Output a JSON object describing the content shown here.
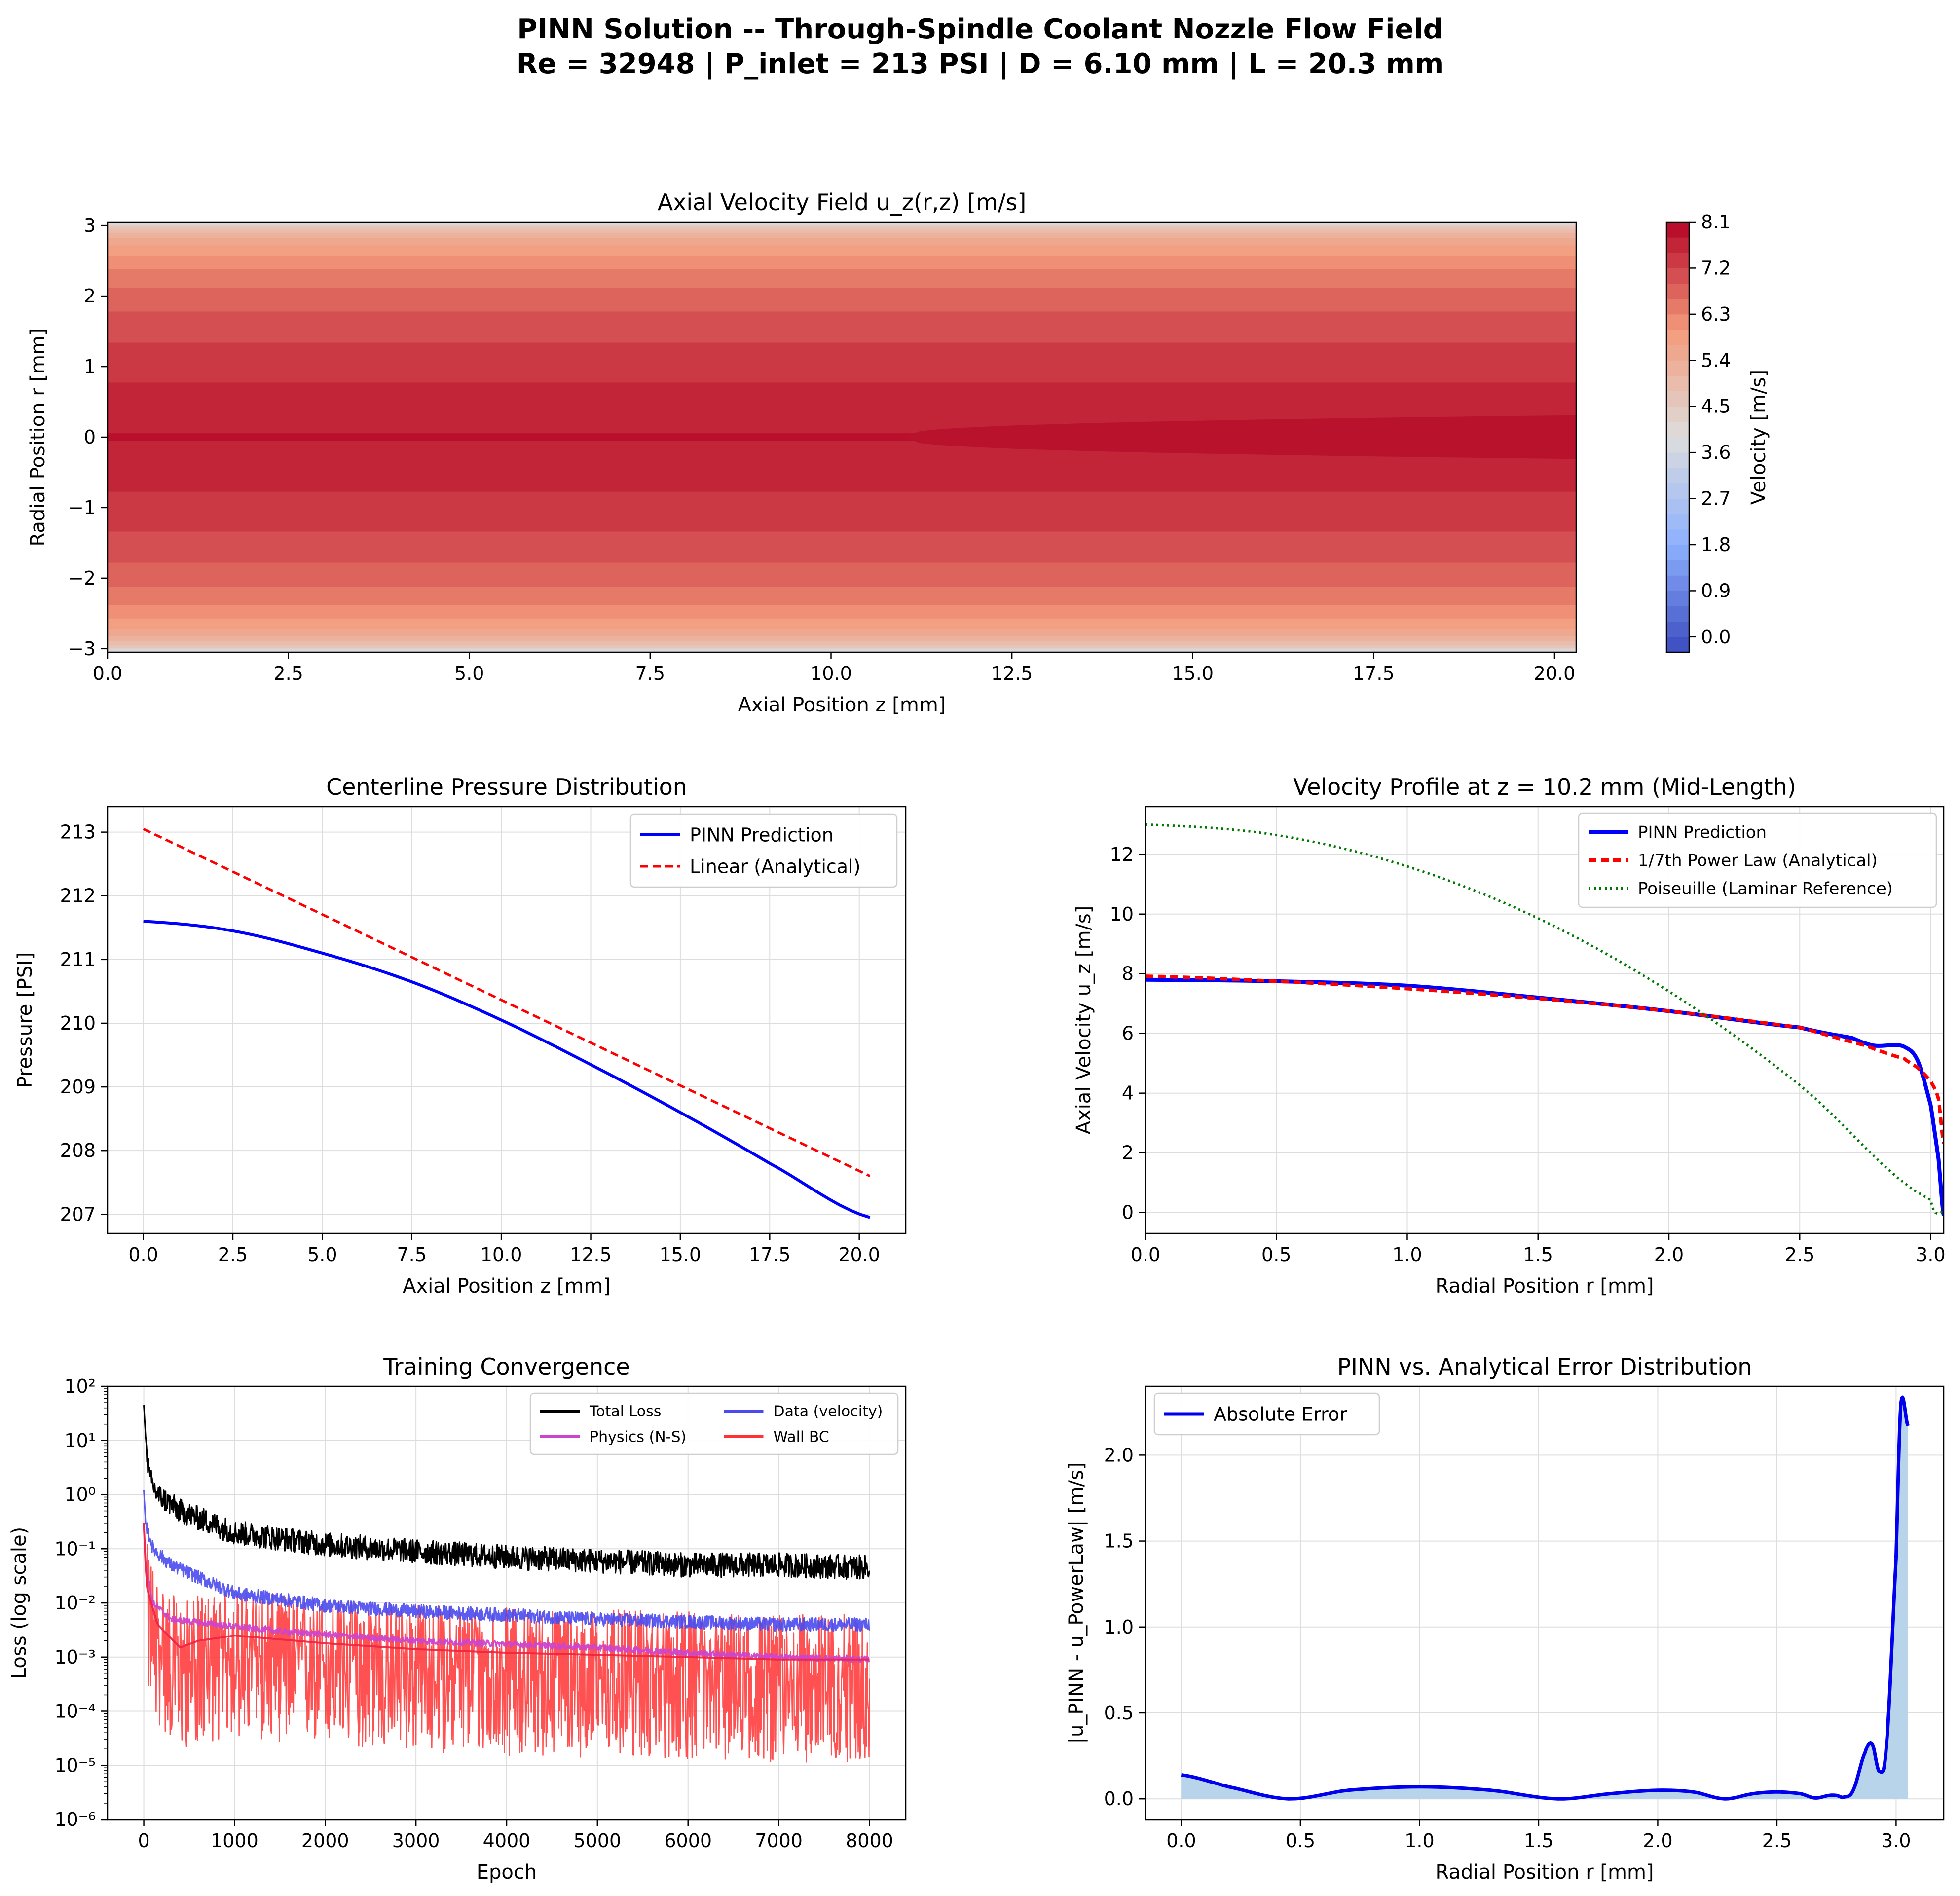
{
  "figure": {
    "title_line1": "PINN Solution -- Through-Spindle Coolant Nozzle Flow Field",
    "title_line2": "Re = 32948 | P_inlet = 213 PSI | D = 6.10 mm | L = 20.3 mm"
  },
  "chart_data": [
    {
      "id": "velocity-field",
      "type": "heatmap",
      "title": "Axial Velocity Field u_z(r,z) [m/s]",
      "xlabel": "Axial Position z [mm]",
      "ylabel": "Radial Position r [mm]",
      "xlim": [
        0,
        20.3
      ],
      "ylim": [
        -3.05,
        3.05
      ],
      "xticks": [
        "0.0",
        "2.5",
        "5.0",
        "7.5",
        "10.0",
        "12.5",
        "15.0",
        "17.5",
        "20.0"
      ],
      "yticks": [
        "3",
        "2",
        "1",
        "0",
        "−1",
        "−2",
        "−3"
      ],
      "colormap": "coolwarm",
      "colorbar": {
        "label": "Velocity [m/s]",
        "range": [
          -0.3,
          8.1
        ],
        "ticks": [
          "8.1",
          "7.2",
          "6.3",
          "5.4",
          "4.5",
          "3.6",
          "2.7",
          "1.8",
          "0.9",
          "0.0"
        ]
      },
      "profile_shape": "one-seventh power law, centerline velocity rising from about 7.8 m/s at inlet to 8.1 m/s at outlet"
    },
    {
      "id": "pressure",
      "type": "line",
      "title": "Centerline Pressure Distribution",
      "xlabel": "Axial Position z [mm]",
      "ylabel": "Pressure [PSI]",
      "xlim": [
        -1.0,
        21.3
      ],
      "ylim": [
        206.7,
        213.4
      ],
      "xticks": [
        "0.0",
        "2.5",
        "5.0",
        "7.5",
        "10.0",
        "12.5",
        "15.0",
        "17.5",
        "20.0"
      ],
      "yticks": [
        "207",
        "208",
        "209",
        "210",
        "211",
        "212",
        "213"
      ],
      "grid": true,
      "legend_position": "top-right",
      "series": [
        {
          "name": "PINN Prediction",
          "color": "#0000ff",
          "style": "solid",
          "x": [
            0,
            2.5,
            5,
            7.5,
            10,
            12.5,
            15,
            17.5,
            20.3
          ],
          "y": [
            211.6,
            211.45,
            211.1,
            210.65,
            210.05,
            209.35,
            208.6,
            207.8,
            206.95
          ]
        },
        {
          "name": "Linear (Analytical)",
          "color": "#ff0000",
          "style": "dashed",
          "x": [
            0,
            20.3
          ],
          "y": [
            213.05,
            207.6
          ]
        }
      ]
    },
    {
      "id": "velocity-profile",
      "type": "line",
      "title": "Velocity Profile at z = 10.2 mm (Mid-Length)",
      "xlabel": "Radial Position r [mm]",
      "ylabel": "Axial Velocity u_z [m/s]",
      "xlim": [
        0,
        3.05
      ],
      "ylim": [
        -0.7,
        13.6
      ],
      "xticks": [
        "0.0",
        "0.5",
        "1.0",
        "1.5",
        "2.0",
        "2.5",
        "3.0"
      ],
      "yticks": [
        "0",
        "2",
        "4",
        "6",
        "8",
        "10",
        "12"
      ],
      "grid": true,
      "legend_position": "top-right",
      "series": [
        {
          "name": "PINN Prediction",
          "color": "#0000ff",
          "style": "solid",
          "x": [
            0,
            0.5,
            1.0,
            1.5,
            2.0,
            2.5,
            2.7,
            2.78,
            2.85,
            2.9,
            2.95,
            3.0,
            3.03,
            3.05
          ],
          "y": [
            7.8,
            7.75,
            7.6,
            7.2,
            6.75,
            6.2,
            5.85,
            5.6,
            5.6,
            5.55,
            5.1,
            3.6,
            1.8,
            -0.1
          ]
        },
        {
          "name": "1/7th Power Law (Analytical)",
          "color": "#ff0000",
          "style": "dashed",
          "x": [
            0,
            0.5,
            1.0,
            1.5,
            2.0,
            2.5,
            2.75,
            2.9,
            2.95,
            3.0,
            3.03,
            3.05
          ],
          "y": [
            7.92,
            7.75,
            7.5,
            7.17,
            6.75,
            6.2,
            5.6,
            5.15,
            4.85,
            4.4,
            3.8,
            2.3
          ]
        },
        {
          "name": "Poiseuille (Laminar Reference)",
          "color": "#007700",
          "style": "dotted",
          "x": [
            0,
            0.5,
            1.0,
            1.5,
            2.0,
            2.5,
            3.0,
            3.05
          ],
          "y": [
            13.0,
            12.65,
            11.6,
            9.86,
            7.41,
            4.27,
            0.42,
            0.0
          ]
        }
      ]
    },
    {
      "id": "training",
      "type": "line",
      "title": "Training Convergence",
      "xlabel": "Epoch",
      "ylabel": "Loss (log scale)",
      "yscale": "log",
      "xlim": [
        -400,
        8400
      ],
      "ylim": [
        1e-06,
        100
      ],
      "xticks": [
        "0",
        "1000",
        "2000",
        "3000",
        "4000",
        "5000",
        "6000",
        "7000",
        "8000"
      ],
      "yticks": [
        "10⁻⁶",
        "10⁻⁵",
        "10⁻⁴",
        "10⁻³",
        "10⁻²",
        "10⁻¹",
        "10⁰",
        "10¹",
        "10²"
      ],
      "grid": true,
      "legend_position": "top-right",
      "legend_columns": 2,
      "series": [
        {
          "name": "Total Loss",
          "color": "#000000",
          "x": [
            0,
            20,
            60,
            150,
            400,
            1000,
            2000,
            3000,
            4000,
            5000,
            6000,
            7000,
            8000
          ],
          "y": [
            45,
            12,
            2.0,
            1.0,
            0.5,
            0.2,
            0.12,
            0.09,
            0.07,
            0.06,
            0.05,
            0.05,
            0.045
          ]
        },
        {
          "name": "Data (velocity)",
          "color": "#4a4af0",
          "x": [
            0,
            20,
            100,
            300,
            1000,
            2000,
            3000,
            4000,
            5000,
            6000,
            7000,
            8000
          ],
          "y": [
            1.2,
            0.3,
            0.1,
            0.05,
            0.015,
            0.009,
            0.007,
            0.006,
            0.005,
            0.0045,
            0.004,
            0.004
          ]
        },
        {
          "name": "Physics (N-S)",
          "color": "#cc44cc",
          "x": [
            0,
            20,
            100,
            300,
            800,
            1500,
            3000,
            5000,
            6000,
            7000,
            8000
          ],
          "y": [
            0.3,
            0.05,
            0.01,
            0.005,
            0.004,
            0.003,
            0.002,
            0.0015,
            0.0012,
            0.001,
            0.0009
          ]
        },
        {
          "name": "Wall BC",
          "color": "#ff3333",
          "x": [
            0,
            30,
            150,
            400,
            600,
            1000,
            2000,
            3000,
            4000,
            5000,
            6000,
            7000,
            8000
          ],
          "y": [
            0.3,
            0.02,
            0.004,
            0.0015,
            0.002,
            0.0025,
            0.0018,
            0.0014,
            0.0012,
            0.0011,
            0.001,
            0.0009,
            0.0009
          ],
          "noise_floor": [
            0.0001,
            8e-05,
            5e-05,
            3e-05,
            2e-05,
            1e-05,
            5e-06
          ]
        }
      ]
    },
    {
      "id": "error",
      "type": "area",
      "title": "PINN vs. Analytical Error Distribution",
      "xlabel": "Radial Position r [mm]",
      "ylabel": "|u_PINN - u_PowerLaw| [m/s]",
      "xlim": [
        -0.15,
        3.2
      ],
      "ylim": [
        -0.12,
        2.4
      ],
      "xticks": [
        "0.0",
        "0.5",
        "1.0",
        "1.5",
        "2.0",
        "2.5",
        "3.0"
      ],
      "yticks": [
        "0.0",
        "0.5",
        "1.0",
        "1.5",
        "2.0"
      ],
      "grid": true,
      "legend_position": "top-left",
      "series": [
        {
          "name": "Absolute Error",
          "color": "#0000ee",
          "fill": "#b8d4ea",
          "x": [
            0,
            0.2,
            0.45,
            0.7,
            1.0,
            1.3,
            1.58,
            1.8,
            2.0,
            2.15,
            2.28,
            2.4,
            2.5,
            2.6,
            2.66,
            2.72,
            2.75,
            2.78,
            2.82,
            2.87,
            2.9,
            2.93,
            2.96,
            3.0,
            3.02,
            3.05
          ],
          "y": [
            0.14,
            0.07,
            0.0,
            0.05,
            0.07,
            0.05,
            0.0,
            0.03,
            0.05,
            0.04,
            0.0,
            0.03,
            0.04,
            0.03,
            0.005,
            0.02,
            0.02,
            0.01,
            0.05,
            0.27,
            0.32,
            0.16,
            0.32,
            1.4,
            2.3,
            2.17
          ]
        }
      ]
    }
  ]
}
